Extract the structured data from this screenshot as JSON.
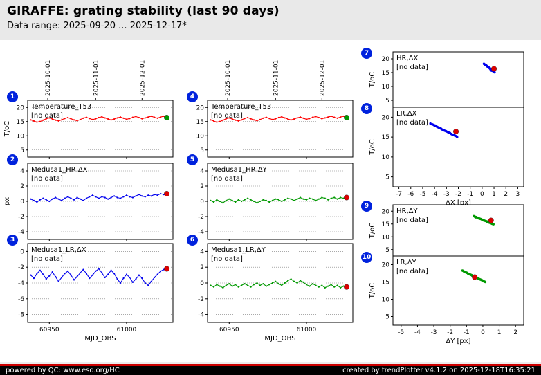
{
  "header": {
    "title": "GIRAFFE: grating stability (last 90 days)",
    "subtitle": "Data range: 2025-09-20 ... 2025-12-17*"
  },
  "footer": {
    "left": "powered by QC: www.eso.org/HC",
    "right": "created by trendPlotter v4.1.2 on 2025-12-18T16:35:21"
  },
  "colors": {
    "temperature_line": "#ff0000",
    "delta_x_line": "#0000ee",
    "delta_y_line": "#009900",
    "last_point_temperature": "#009900",
    "last_point_delta": "#dd0000",
    "no_data_temperature": "#ff9900",
    "no_data_delta_x": "#00bbbb",
    "no_data_delta_y": "#bb00bb",
    "badge": "#0022dd"
  },
  "top_axis_dates": [
    {
      "mjd": 60949,
      "label": "2025-10-01"
    },
    {
      "mjd": 60980,
      "label": "2025-11-01"
    },
    {
      "mjd": 61010,
      "label": "2025-12-01"
    }
  ],
  "x_mjd": [
    60938,
    60940,
    60942,
    60944,
    60946,
    60948,
    60950,
    60952,
    60954,
    60956,
    60958,
    60960,
    60962,
    60964,
    60966,
    60968,
    60970,
    60972,
    60974,
    60976,
    60978,
    60980,
    60982,
    60984,
    60986,
    60988,
    60990,
    60992,
    60994,
    60996,
    60998,
    61000,
    61002,
    61004,
    61006,
    61008,
    61010,
    61012,
    61014,
    61016,
    61018,
    61020,
    61022,
    61024,
    61026
  ],
  "chart_data": [
    {
      "id": "p1",
      "badge": 1,
      "type": "line",
      "title": "Temperature_T53",
      "no_data": "[no data]",
      "no_data_color": "#ff9900",
      "color": "#ff0000",
      "ylabel": "T/oC",
      "xlim": [
        60936,
        61030
      ],
      "ylim": [
        2.5,
        22.5
      ],
      "yticks": [
        20,
        15,
        10,
        5
      ],
      "xticks": [
        60950,
        61000
      ],
      "xtick_labels": false,
      "grid": true,
      "top_dates": true,
      "x_ref": "x_mjd",
      "y": [
        15.6,
        15.2,
        14.8,
        15.0,
        15.5,
        16.0,
        16.3,
        15.9,
        15.5,
        15.2,
        15.6,
        16.1,
        16.4,
        16.0,
        15.6,
        15.3,
        15.7,
        16.2,
        16.5,
        16.1,
        15.7,
        16.0,
        16.4,
        16.7,
        16.3,
        15.9,
        15.6,
        15.9,
        16.3,
        16.6,
        16.2,
        15.8,
        16.1,
        16.5,
        16.8,
        16.4,
        16.0,
        16.3,
        16.6,
        16.9,
        16.5,
        16.2,
        16.6,
        16.9,
        16.4
      ],
      "last_point": {
        "x": 61026,
        "y": 16.4,
        "color": "#009900"
      }
    },
    {
      "id": "p2",
      "badge": 2,
      "type": "line",
      "title": "Medusa1_HR,ΔX",
      "no_data": "[no data]",
      "no_data_color": "#00bbbb",
      "color": "#0000ee",
      "ylabel": "px",
      "xlim": [
        60936,
        61030
      ],
      "ylim": [
        -5,
        5
      ],
      "yticks": [
        4,
        2,
        0,
        -2,
        -4
      ],
      "xticks": [
        60950,
        61000
      ],
      "xtick_labels": false,
      "grid": true,
      "x_ref": "x_mjd",
      "y": [
        0.3,
        0.1,
        -0.1,
        0.2,
        0.4,
        0.2,
        0.0,
        0.3,
        0.5,
        0.3,
        0.1,
        0.4,
        0.6,
        0.4,
        0.2,
        0.5,
        0.3,
        0.1,
        0.4,
        0.6,
        0.8,
        0.6,
        0.4,
        0.6,
        0.5,
        0.3,
        0.5,
        0.7,
        0.5,
        0.4,
        0.6,
        0.8,
        0.6,
        0.5,
        0.7,
        0.9,
        0.7,
        0.6,
        0.8,
        0.7,
        0.9,
        0.8,
        1.0,
        0.9,
        1.0
      ],
      "last_point": {
        "x": 61026,
        "y": 1.0,
        "color": "#dd0000"
      }
    },
    {
      "id": "p3",
      "badge": 3,
      "type": "line",
      "title": "Medusa1_LR,ΔX",
      "no_data": "[no data]",
      "no_data_color": "#00bbbb",
      "color": "#0000ee",
      "xlim": [
        60936,
        61030
      ],
      "ylim": [
        -9,
        1
      ],
      "yticks": [
        0,
        -2,
        -4,
        -6,
        -8
      ],
      "xticks": [
        60950,
        61000
      ],
      "xtick_labels": true,
      "xlabel": "MJD_OBS",
      "grid": true,
      "x_ref": "x_mjd",
      "y": [
        -3.0,
        -3.4,
        -2.8,
        -2.4,
        -2.9,
        -3.5,
        -3.1,
        -2.6,
        -3.2,
        -3.8,
        -3.3,
        -2.8,
        -2.5,
        -3.0,
        -3.6,
        -3.2,
        -2.7,
        -2.3,
        -2.8,
        -3.4,
        -3.0,
        -2.5,
        -2.2,
        -2.7,
        -3.3,
        -2.9,
        -2.4,
        -2.8,
        -3.5,
        -4.0,
        -3.4,
        -2.9,
        -3.3,
        -3.9,
        -3.5,
        -3.0,
        -3.4,
        -4.0,
        -4.3,
        -3.8,
        -3.3,
        -2.9,
        -2.5,
        -2.3,
        -2.2
      ],
      "last_point": {
        "x": 61026,
        "y": -2.2,
        "color": "#dd0000"
      }
    },
    {
      "id": "p4",
      "badge": 4,
      "type": "line",
      "title": "Temperature_T53",
      "no_data": "[no data]",
      "no_data_color": "#ff9900",
      "color": "#ff0000",
      "xlim": [
        60936,
        61030
      ],
      "ylim": [
        2.5,
        22.5
      ],
      "yticks": [
        20,
        15,
        10,
        5
      ],
      "xticks": [
        60950,
        61000
      ],
      "xtick_labels": false,
      "grid": true,
      "top_dates": true,
      "x_ref": "x_mjd",
      "y": [
        15.6,
        15.2,
        14.8,
        15.0,
        15.5,
        16.0,
        16.3,
        15.9,
        15.5,
        15.2,
        15.6,
        16.1,
        16.4,
        16.0,
        15.6,
        15.3,
        15.7,
        16.2,
        16.5,
        16.1,
        15.7,
        16.0,
        16.4,
        16.7,
        16.3,
        15.9,
        15.6,
        15.9,
        16.3,
        16.6,
        16.2,
        15.8,
        16.1,
        16.5,
        16.8,
        16.4,
        16.0,
        16.3,
        16.6,
        16.9,
        16.5,
        16.2,
        16.6,
        16.9,
        16.4
      ],
      "last_point": {
        "x": 61026,
        "y": 16.4,
        "color": "#009900"
      }
    },
    {
      "id": "p5",
      "badge": 5,
      "type": "line",
      "title": "Medusa1_HR,ΔY",
      "no_data": "[no data]",
      "no_data_color": "#bb00bb",
      "color": "#009900",
      "xlim": [
        60936,
        61030
      ],
      "ylim": [
        -5,
        5
      ],
      "yticks": [
        4,
        2,
        0,
        -2,
        -4
      ],
      "xticks": [
        60950,
        61000
      ],
      "xtick_labels": false,
      "grid": true,
      "x_ref": "x_mjd",
      "y": [
        0.1,
        -0.1,
        0.2,
        0.0,
        -0.2,
        0.1,
        0.3,
        0.1,
        -0.1,
        0.2,
        0.0,
        0.2,
        0.4,
        0.2,
        0.0,
        -0.2,
        0.0,
        0.2,
        0.1,
        -0.1,
        0.1,
        0.3,
        0.2,
        0.0,
        0.2,
        0.4,
        0.3,
        0.1,
        0.3,
        0.5,
        0.3,
        0.2,
        0.4,
        0.3,
        0.1,
        0.3,
        0.5,
        0.4,
        0.2,
        0.4,
        0.5,
        0.3,
        0.5,
        0.4,
        0.5
      ],
      "last_point": {
        "x": 61026,
        "y": 0.5,
        "color": "#dd0000"
      }
    },
    {
      "id": "p6",
      "badge": 6,
      "type": "line",
      "title": "Medusa1_LR,ΔY",
      "no_data": "[no data]",
      "no_data_color": "#bb00bb",
      "color": "#009900",
      "xlim": [
        60936,
        61030
      ],
      "ylim": [
        -5,
        5
      ],
      "yticks": [
        4,
        2,
        0,
        -2,
        -4
      ],
      "xticks": [
        60950,
        61000
      ],
      "xtick_labels": true,
      "xlabel": "MJD_OBS",
      "grid": true,
      "x_ref": "x_mjd",
      "y": [
        -0.3,
        -0.5,
        -0.2,
        -0.4,
        -0.6,
        -0.3,
        -0.1,
        -0.4,
        -0.2,
        -0.5,
        -0.3,
        -0.1,
        -0.3,
        -0.5,
        -0.2,
        0.0,
        -0.3,
        -0.1,
        -0.4,
        -0.2,
        0.0,
        0.2,
        -0.1,
        -0.3,
        0.0,
        0.3,
        0.5,
        0.2,
        0.0,
        0.3,
        0.1,
        -0.2,
        -0.4,
        -0.1,
        -0.3,
        -0.5,
        -0.3,
        -0.6,
        -0.4,
        -0.2,
        -0.5,
        -0.3,
        -0.6,
        -0.4,
        -0.5
      ],
      "last_point": {
        "x": 61026,
        "y": -0.5,
        "color": "#dd0000"
      }
    },
    {
      "id": "p7",
      "badge": 7,
      "type": "scatter",
      "title": "HR,ΔX",
      "no_data": "[no data]",
      "no_data_color": "#00bbbb",
      "color": "#0000ee",
      "ylabel": "T/oC",
      "xlim": [
        -7.5,
        3.5
      ],
      "ylim": [
        2.5,
        22.5
      ],
      "yticks": [
        20,
        15,
        10,
        5
      ],
      "grid": false,
      "x": [
        0.15,
        0.3,
        0.45,
        0.6,
        0.75,
        0.9,
        1.0,
        0.5,
        0.65,
        0.8,
        0.25,
        0.4,
        0.55,
        0.7,
        0.85,
        0.95,
        0.35,
        0.5,
        0.6,
        0.2,
        0.7,
        0.8,
        0.45,
        0.55,
        0.9,
        0.65,
        0.3,
        0.75,
        0.5,
        1.05
      ],
      "y": [
        18.2,
        17.8,
        17.3,
        16.8,
        16.3,
        15.8,
        15.3,
        17.0,
        16.5,
        16.0,
        17.9,
        17.4,
        16.9,
        16.4,
        15.9,
        15.5,
        17.6,
        17.1,
        16.7,
        18.0,
        16.2,
        15.7,
        17.2,
        16.8,
        15.6,
        16.6,
        17.7,
        16.1,
        16.9,
        15.1
      ],
      "last_point": {
        "x": 1.0,
        "y": 16.4,
        "color": "#dd0000"
      }
    },
    {
      "id": "p8",
      "badge": 8,
      "type": "scatter",
      "title": "LR,ΔX",
      "no_data": "[no data]",
      "no_data_color": "#00bbbb",
      "color": "#0000ee",
      "ylabel": "T/oC",
      "xlim": [
        -7.5,
        3.5
      ],
      "ylim": [
        2.5,
        22.5
      ],
      "yticks": [
        20,
        15,
        10,
        5
      ],
      "xticks": [
        -7,
        -6,
        -5,
        -4,
        -3,
        -2,
        -1,
        0,
        1,
        2,
        3
      ],
      "xtick_labels": true,
      "xlabel": "ΔX [px]",
      "grid": false,
      "x": [
        -4.35,
        -4.2,
        -4.05,
        -3.9,
        -3.75,
        -3.6,
        -3.45,
        -3.3,
        -3.15,
        -3.0,
        -2.85,
        -2.7,
        -2.55,
        -2.4,
        -2.25,
        -2.1,
        -4.1,
        -3.8,
        -3.5,
        -3.2,
        -2.9,
        -2.6,
        -2.3,
        -3.95,
        -3.65,
        -3.35,
        -3.05,
        -2.75,
        -2.45,
        -2.15
      ],
      "y": [
        18.4,
        18.2,
        18.0,
        17.75,
        17.5,
        17.3,
        17.1,
        16.85,
        16.6,
        16.4,
        16.2,
        16.0,
        15.7,
        15.5,
        15.3,
        15.0,
        18.1,
        17.6,
        17.2,
        16.7,
        16.3,
        15.8,
        15.4,
        17.9,
        17.4,
        16.9,
        16.5,
        16.1,
        15.6,
        15.2
      ],
      "last_point": {
        "x": -2.2,
        "y": 16.4,
        "color": "#dd0000"
      }
    },
    {
      "id": "p9",
      "badge": 9,
      "type": "scatter",
      "title": "HR,ΔY",
      "no_data": "[no data]",
      "no_data_color": "#bb00bb",
      "color": "#009900",
      "ylabel": "T/oC",
      "xlim": [
        -5.5,
        2.5
      ],
      "ylim": [
        2.5,
        22.5
      ],
      "yticks": [
        20,
        15,
        10,
        5
      ],
      "grid": false,
      "x": [
        -0.55,
        -0.45,
        -0.35,
        -0.25,
        -0.15,
        -0.05,
        0.05,
        0.15,
        0.25,
        0.35,
        0.45,
        0.55,
        0.65,
        -0.5,
        -0.4,
        -0.3,
        -0.2,
        -0.1,
        0.0,
        0.1,
        0.2,
        0.3,
        0.4,
        0.5,
        0.6,
        -0.25,
        0.05,
        0.35,
        -0.45,
        0.25
      ],
      "y": [
        18.1,
        17.8,
        17.5,
        17.2,
        17.0,
        16.7,
        16.4,
        16.2,
        15.9,
        15.7,
        15.4,
        15.1,
        14.9,
        17.9,
        17.7,
        17.4,
        17.1,
        16.9,
        16.6,
        16.3,
        16.1,
        15.8,
        15.5,
        15.3,
        15.0,
        17.3,
        16.5,
        15.6,
        17.6,
        16.0
      ],
      "last_point": {
        "x": 0.5,
        "y": 16.4,
        "color": "#dd0000"
      }
    },
    {
      "id": "p10",
      "badge": 10,
      "type": "scatter",
      "title": "LR,ΔY",
      "no_data": "[no data]",
      "no_data_color": "#bb00bb",
      "color": "#009900",
      "ylabel": "T/oC",
      "xlim": [
        -5.5,
        2.5
      ],
      "ylim": [
        2.5,
        22.5
      ],
      "yticks": [
        20,
        15,
        10,
        5
      ],
      "xticks": [
        -5,
        -4,
        -3,
        -2,
        -1,
        0,
        1,
        2
      ],
      "xtick_labels": true,
      "xlabel": "ΔY [px]",
      "grid": false,
      "x": [
        -1.25,
        -1.15,
        -1.05,
        -0.95,
        -0.85,
        -0.75,
        -0.65,
        -0.55,
        -0.45,
        -0.35,
        -0.25,
        -0.15,
        -0.05,
        0.05,
        0.15,
        -1.2,
        -1.1,
        -1.0,
        -0.9,
        -0.8,
        -0.7,
        -0.6,
        -0.5,
        -0.4,
        -0.3,
        -0.2,
        -0.1,
        0.0,
        0.1,
        -0.65
      ],
      "y": [
        18.3,
        18.0,
        17.8,
        17.6,
        17.3,
        17.1,
        16.9,
        16.6,
        16.4,
        16.2,
        15.9,
        15.7,
        15.5,
        15.2,
        15.0,
        18.2,
        17.9,
        17.7,
        17.4,
        17.2,
        17.0,
        16.7,
        16.5,
        16.3,
        16.0,
        15.8,
        15.6,
        15.3,
        15.1,
        16.8
      ],
      "last_point": {
        "x": -0.5,
        "y": 16.4,
        "color": "#dd0000"
      }
    }
  ]
}
